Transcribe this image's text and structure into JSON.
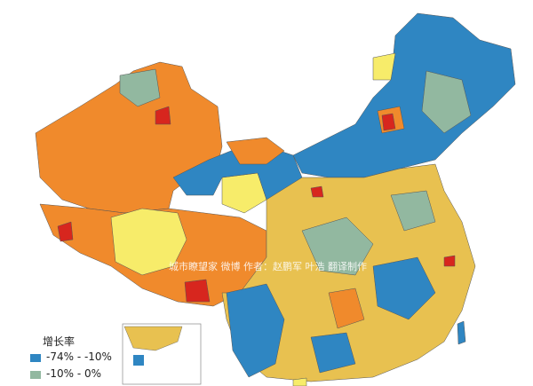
{
  "legend": {
    "title": "增长率",
    "items": [
      {
        "label": "-74% - -10%",
        "color": "#2f86c2"
      },
      {
        "label": "-10% -  0%",
        "color": "#92b8a0"
      }
    ]
  },
  "watermark": "城市瞭望家 微博 作者：赵鹏军 叶浩 翻译制作"
}
